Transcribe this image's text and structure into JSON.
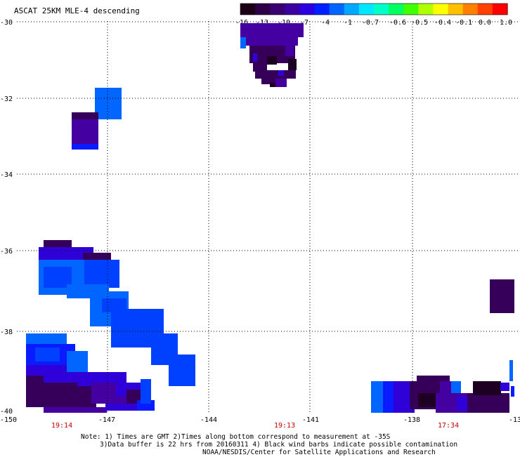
{
  "title": "ASCAT 25KM MLE-4 descending",
  "colorbar": {
    "colors": [
      "#1b0015",
      "#2e0045",
      "#3a0070",
      "#3c00a0",
      "#2a00e0",
      "#0020ff",
      "#0066ff",
      "#00a8ff",
      "#00e8ff",
      "#00ffc8",
      "#00ff60",
      "#40ff00",
      "#b0ff00",
      "#ffff00",
      "#ffc000",
      "#ff8000",
      "#ff4000",
      "#ff0000"
    ],
    "labels": [
      "-16",
      "-13",
      "-10",
      "-7",
      "-4",
      "-1",
      "-0.7",
      "-0.6",
      "-0.5",
      "-0.4",
      "-0.1",
      "0.0",
      "1.0"
    ]
  },
  "lat_labels": [
    "-30",
    "-32",
    "-34",
    "-36",
    "-38",
    "-40"
  ],
  "lon_labels": [
    "-150",
    "-147",
    "-144",
    "-141",
    "-138",
    "-13"
  ],
  "time_labels": [
    "19:14",
    "19:13",
    "17:34"
  ],
  "notes": [
    "Note: 1) Times are GMT 2)Times along bottom correspond to measurement at -35S",
    "3)Data buffer is 22 hrs from 20160311 4) Black wind barbs indicate possible contamination",
    "NOAA/NESDIS/Center for Satellite Applications and Research"
  ],
  "palette": {
    "blackpurple": "#1e0022",
    "darkpurple": "#36005a",
    "purple": "#4400a0",
    "indigo": "#3000d8",
    "blue": "#0a1cff",
    "mblue": "#0040ff",
    "lblue": "#0066ff",
    "time_label_color": "#c00000"
  }
}
